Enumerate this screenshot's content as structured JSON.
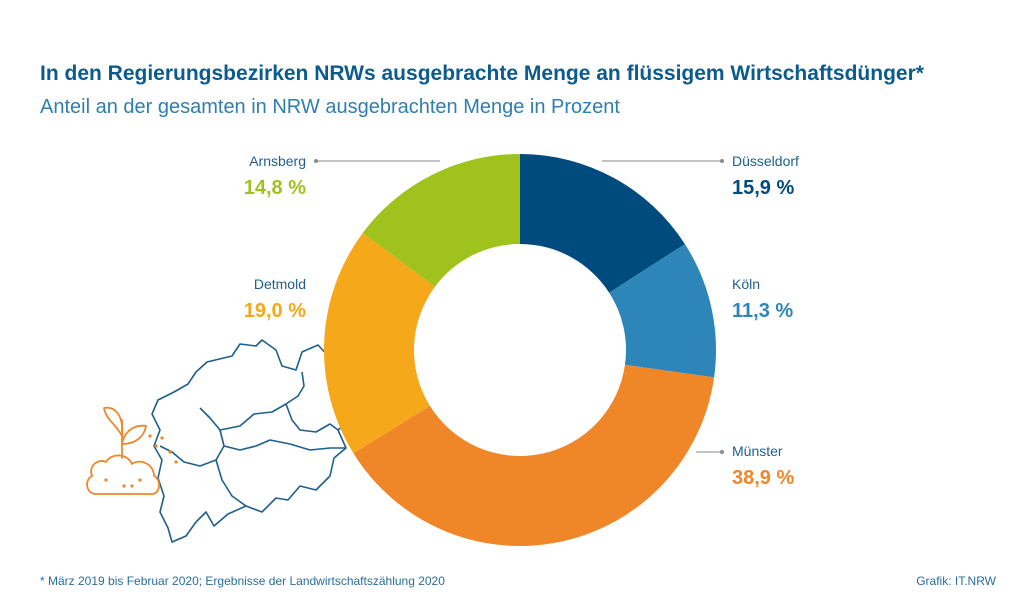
{
  "chart_data": {
    "type": "pie",
    "title": "In den Regierungsbezirken NRWs ausgebrachte Menge an flüssigem Wirtschaftsdünger*",
    "subtitle": "Anteil an der gesamten in NRW ausgebrachten Menge in Prozent",
    "categories": [
      "Düsseldorf",
      "Köln",
      "Münster",
      "Detmold",
      "Arnsberg"
    ],
    "values": [
      15.9,
      11.3,
      38.9,
      19.0,
      14.8
    ],
    "value_labels": [
      "15,9 %",
      "11,3 %",
      "38,9 %",
      "19,0 %",
      "14,8 %"
    ],
    "colors": [
      "#004b7d",
      "#2e86b8",
      "#ef8628",
      "#f6a81b",
      "#9fc31c"
    ],
    "donut": true
  },
  "footer": {
    "note": "*  März 2019 bis Februar 2020; Ergebnisse der Landwirtschaftszählung 2020",
    "credit": "Grafik: IT.NRW"
  }
}
